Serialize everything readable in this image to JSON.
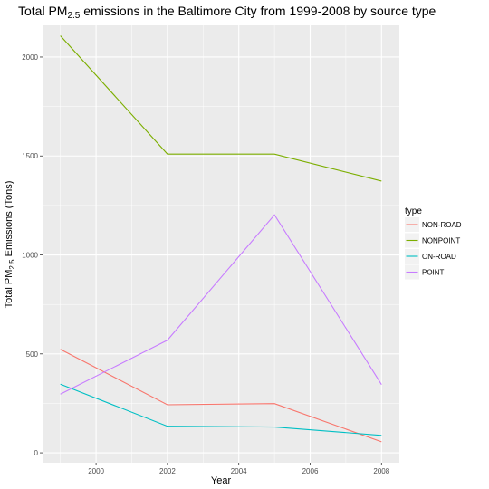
{
  "chart_data": {
    "type": "line",
    "title_prefix": "Total PM",
    "title_sub": "2.5",
    "title_suffix": " emissions in the Baltimore City from 1999-2008 by source type",
    "xlabel": "Year",
    "ylabel_prefix": "Total PM",
    "ylabel_sub": "2.5",
    "ylabel_suffix": " Emissions (Tons)",
    "x": [
      1999,
      2002,
      2005,
      2008
    ],
    "xlim": [
      1998.5,
      2008.5
    ],
    "ylim": [
      -50,
      2160
    ],
    "xticks": [
      2000,
      2002,
      2004,
      2006,
      2008
    ],
    "yticks": [
      0,
      500,
      1000,
      1500,
      2000
    ],
    "grid": true,
    "legend_title": "type",
    "legend_position": "right",
    "series": [
      {
        "name": "NON-ROAD",
        "color": "#F8766D",
        "values": [
          522.9,
          242.9,
          248.9,
          55.8
        ]
      },
      {
        "name": "NONPOINT",
        "color": "#7CAE00",
        "values": [
          2107.6,
          1509.5,
          1509.5,
          1373.2
        ]
      },
      {
        "name": "ON-ROAD",
        "color": "#00BFC4",
        "values": [
          346.8,
          134.3,
          130.4,
          88.3
        ]
      },
      {
        "name": "POINT",
        "color": "#C77CFF",
        "values": [
          296.8,
          569.3,
          1202.5,
          344.98
        ]
      }
    ]
  }
}
